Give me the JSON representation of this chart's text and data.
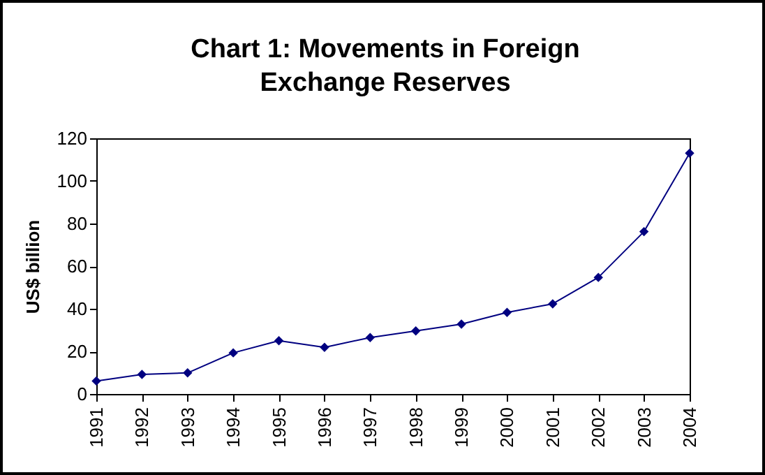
{
  "chart_data": {
    "type": "line",
    "title": "Chart 1: Movements in Foreign Exchange Reserves",
    "ylabel": "US$ billion",
    "categories": [
      "1991",
      "1992",
      "1993",
      "1994",
      "1995",
      "1996",
      "1997",
      "1998",
      "1999",
      "2000",
      "2001",
      "2002",
      "2003",
      "2004"
    ],
    "series": [
      {
        "color": "#000080",
        "values": [
          6.1,
          9.2,
          9.9,
          19.3,
          25,
          21.9,
          26.5,
          29.6,
          32.8,
          38.3,
          42.3,
          54.7,
          76.2,
          113
        ]
      }
    ],
    "ylim": [
      0,
      120
    ],
    "yticks": [
      0,
      20,
      40,
      60,
      80,
      100,
      120
    ],
    "grid": false,
    "legend": false,
    "marker": "diamond",
    "line_style": "solid"
  }
}
